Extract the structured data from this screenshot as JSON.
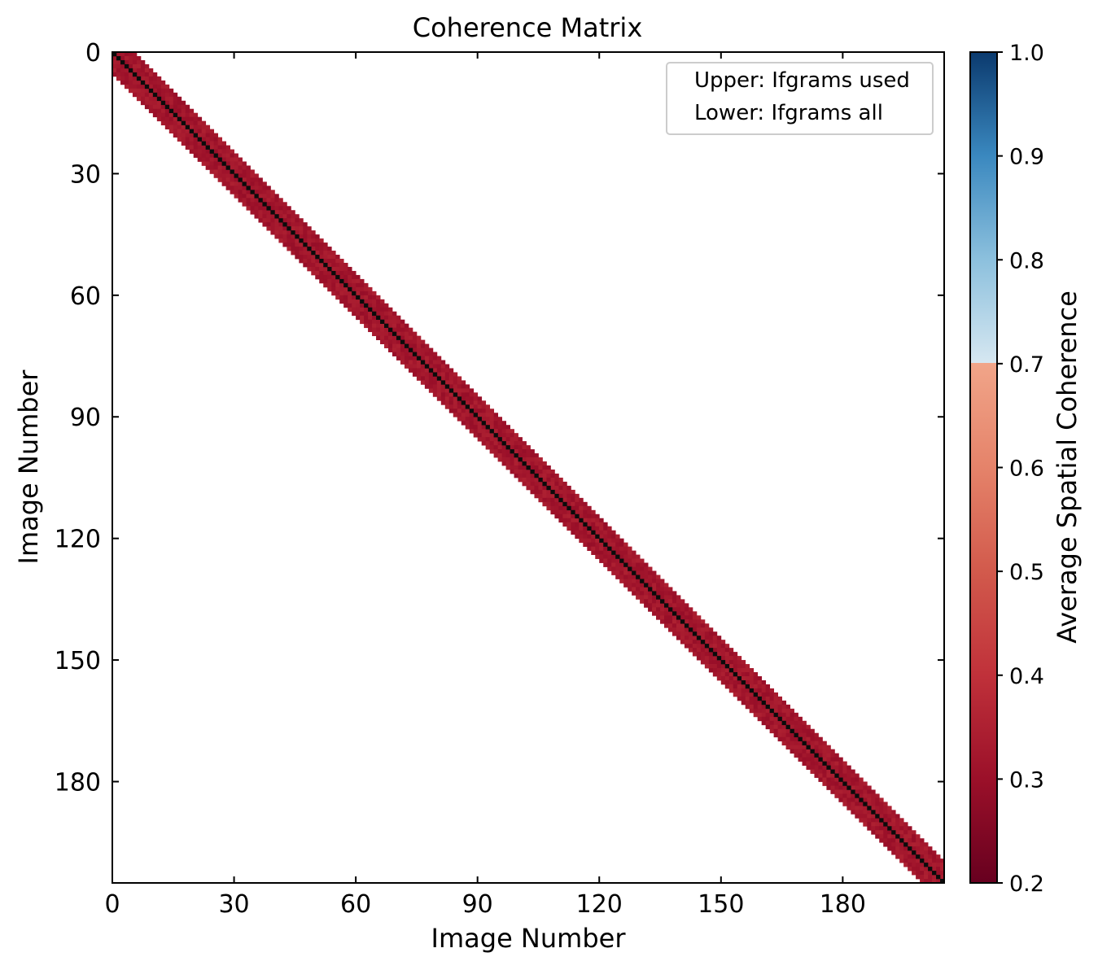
{
  "chart_data": {
    "type": "heatmap",
    "title": "Coherence Matrix",
    "xlabel": "Image Number",
    "ylabel": "Image Number",
    "n_images": 205,
    "xlim": [
      0,
      205
    ],
    "ylim": [
      205,
      0
    ],
    "x_ticks": [
      0,
      30,
      60,
      90,
      120,
      150,
      180
    ],
    "y_ticks": [
      0,
      30,
      60,
      90,
      120,
      150,
      180
    ],
    "band_half_width": 5,
    "diagonal_color": "#0b0b0b",
    "band_value": 0.32,
    "band_value_range": [
      0.28,
      0.38
    ],
    "legend": {
      "position": "upper right",
      "entries": [
        "Upper: Ifgrams used",
        "Lower: Ifgrams all"
      ]
    },
    "colorbar": {
      "label": "Average Spatial Coherence",
      "min": 0.2,
      "max": 1.0,
      "ticks": [
        "1.0",
        "0.9",
        "0.8",
        "0.7",
        "0.6",
        "0.5",
        "0.4",
        "0.3",
        "0.2"
      ],
      "tick_values": [
        1.0,
        0.9,
        0.8,
        0.7,
        0.6,
        0.5,
        0.4,
        0.3,
        0.2
      ],
      "split": 0.7,
      "stops_low": [
        {
          "v": 0.2,
          "color": "#67001f"
        },
        {
          "v": 0.3,
          "color": "#9b1029"
        },
        {
          "v": 0.4,
          "color": "#c0313a"
        },
        {
          "v": 0.5,
          "color": "#d25a4c"
        },
        {
          "v": 0.6,
          "color": "#e5836a"
        },
        {
          "v": 0.7,
          "color": "#f1a589"
        }
      ],
      "stops_high": [
        {
          "v": 0.7,
          "color": "#d6e7f1"
        },
        {
          "v": 0.8,
          "color": "#8cc0dd"
        },
        {
          "v": 0.9,
          "color": "#3a88bf"
        },
        {
          "v": 1.0,
          "color": "#0b3a6e"
        }
      ]
    }
  }
}
